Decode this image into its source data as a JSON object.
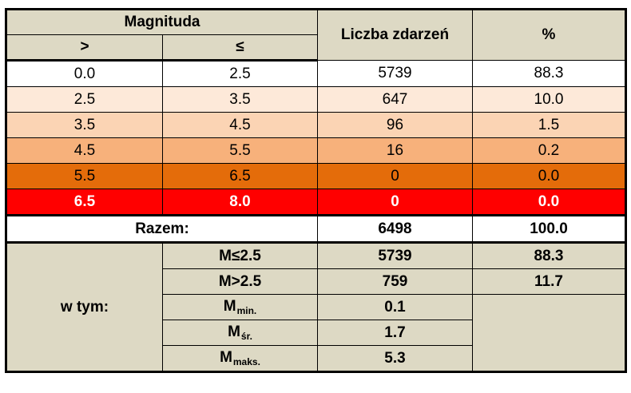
{
  "header": {
    "magnitude": "Magnituda",
    "gt": ">",
    "le": "≤",
    "count": "Liczba zdarzeń",
    "percent": "%"
  },
  "rows": [
    {
      "from": "0.0",
      "to": "2.5",
      "count": "5739",
      "percent": "88.3",
      "color": "#ffffff"
    },
    {
      "from": "2.5",
      "to": "3.5",
      "count": "647",
      "percent": "10.0",
      "color": "#fde9d9"
    },
    {
      "from": "3.5",
      "to": "4.5",
      "count": "96",
      "percent": "1.5",
      "color": "#fbd4b4"
    },
    {
      "from": "4.5",
      "to": "5.5",
      "count": "16",
      "percent": "0.2",
      "color": "#f7b17b"
    },
    {
      "from": "5.5",
      "to": "6.5",
      "count": "0",
      "percent": "0.0",
      "color": "#e46c0a"
    },
    {
      "from": "6.5",
      "to": "8.0",
      "count": "0",
      "percent": "0.0",
      "color": "#ff0000"
    }
  ],
  "total": {
    "label": "Razem:",
    "count": "6498",
    "percent": "100.0"
  },
  "breakdown": {
    "label": "w tym:",
    "items": [
      {
        "label": "M≤2.5",
        "value": "5739",
        "percent": "88.3"
      },
      {
        "label": "M>2.5",
        "value": "759",
        "percent": "11.7"
      },
      {
        "label": "M",
        "sub": "min.",
        "value": "0.1"
      },
      {
        "label": "M",
        "sub": "śr.",
        "value": "1.7"
      },
      {
        "label": "M",
        "sub": "maks.",
        "value": "5.3"
      }
    ]
  }
}
